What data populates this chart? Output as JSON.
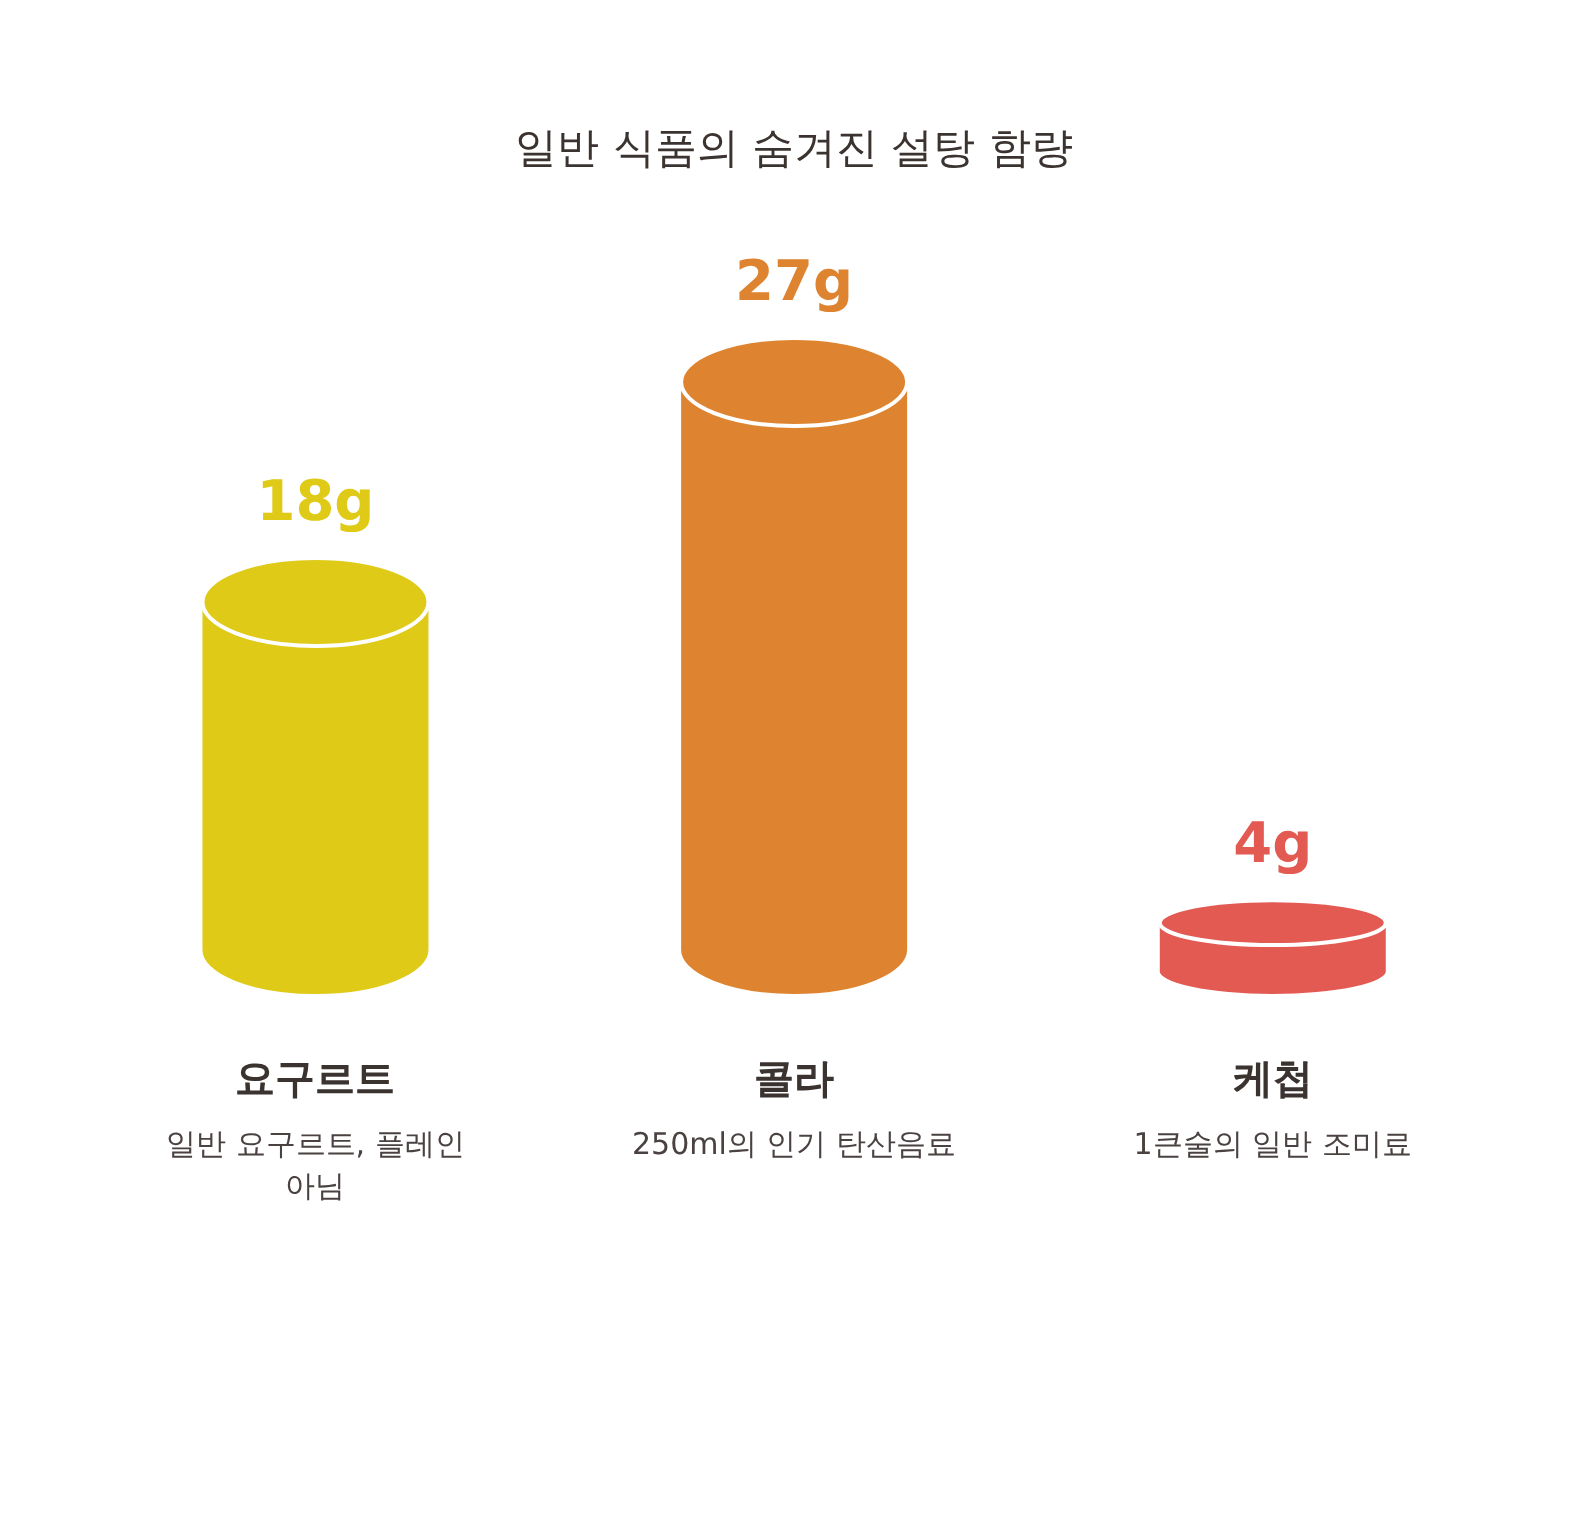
{
  "chart_data": {
    "type": "bar",
    "title": "일반 식품의 숨겨진 설탕 함량",
    "categories": [
      "요구르트",
      "콜라",
      "케첩"
    ],
    "values": [
      18,
      27,
      4
    ],
    "colors": [
      "#dfca18",
      "#de8430",
      "#e35a52"
    ],
    "value_labels": [
      "18g",
      "27g",
      "4g"
    ],
    "annotations": [
      "일반 요구르트, 플레인 아님",
      "250ml의 인기 탄산음료",
      "1큰술의 일반 조미료"
    ]
  }
}
